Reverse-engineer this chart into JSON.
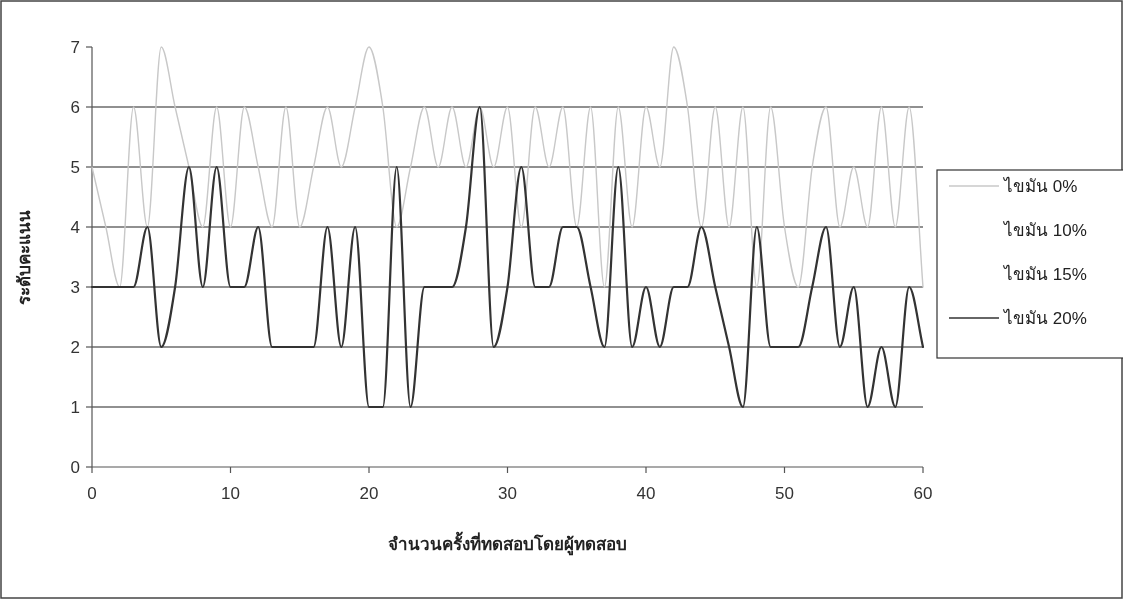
{
  "chart_data": {
    "type": "line",
    "xlabel": "จำนวนครั้งที่ทดสอบโดยผู้ทดสอบ",
    "ylabel": "ระดับคะแนน",
    "x": [
      0,
      1,
      2,
      3,
      4,
      5,
      6,
      7,
      8,
      9,
      10,
      11,
      12,
      13,
      14,
      15,
      16,
      17,
      18,
      19,
      20,
      21,
      22,
      23,
      24,
      25,
      26,
      27,
      28,
      29,
      30,
      31,
      32,
      33,
      34,
      35,
      36,
      37,
      38,
      39,
      40,
      41,
      42,
      43,
      44,
      45,
      46,
      47,
      48,
      49,
      50,
      51,
      52,
      53,
      54,
      55,
      56,
      57,
      58,
      59,
      60
    ],
    "series": [
      {
        "name": "ไขมัน 0%",
        "color": "#c8c8c8",
        "values": [
          5,
          4,
          3,
          6,
          4,
          7,
          6,
          5,
          4,
          6,
          4,
          6,
          5,
          4,
          6,
          4,
          5,
          6,
          5,
          6,
          7,
          6,
          4,
          5,
          6,
          5,
          6,
          5,
          6,
          5,
          6,
          4,
          6,
          5,
          6,
          4,
          6,
          3,
          6,
          4,
          6,
          5,
          7,
          6,
          4,
          6,
          4,
          6,
          3,
          6,
          4,
          3,
          5,
          6,
          4,
          5,
          4,
          6,
          4,
          6,
          3
        ]
      },
      {
        "name": "ไขมัน 10%",
        "values": [
          null,
          null,
          null,
          null,
          null,
          null,
          null,
          null,
          null,
          null,
          null,
          null,
          null,
          null,
          null,
          null,
          null,
          null,
          null,
          null,
          null,
          null,
          null,
          null,
          null,
          null,
          null,
          null,
          null,
          null,
          null,
          null,
          null,
          null,
          null,
          null,
          null,
          null,
          null,
          null,
          null,
          null,
          null,
          null,
          null,
          null,
          null,
          null,
          null,
          null,
          null,
          null,
          null,
          null,
          null,
          null,
          null,
          null,
          null,
          null,
          null
        ]
      },
      {
        "name": "ไขมัน 15%",
        "values": [
          null,
          null,
          null,
          null,
          null,
          null,
          null,
          null,
          null,
          null,
          null,
          null,
          null,
          null,
          null,
          null,
          null,
          null,
          null,
          null,
          null,
          null,
          null,
          null,
          null,
          null,
          null,
          null,
          null,
          null,
          null,
          null,
          null,
          null,
          null,
          null,
          null,
          null,
          null,
          null,
          null,
          null,
          null,
          null,
          null,
          null,
          null,
          null,
          null,
          null,
          null,
          null,
          null,
          null,
          null,
          null,
          null,
          null,
          null,
          null,
          null
        ]
      },
      {
        "name": "ไขมัน 20%",
        "color": "#333333",
        "values": [
          3,
          3,
          3,
          3,
          4,
          2,
          3,
          5,
          3,
          5,
          3,
          3,
          4,
          2,
          2,
          2,
          2,
          4,
          2,
          4,
          1,
          1,
          5,
          1,
          3,
          3,
          3,
          4,
          6,
          2,
          3,
          5,
          3,
          3,
          4,
          4,
          3,
          2,
          5,
          2,
          3,
          2,
          3,
          3,
          4,
          3,
          2,
          1,
          4,
          2,
          2,
          2,
          3,
          4,
          2,
          3,
          1,
          2,
          1,
          3,
          2
        ]
      }
    ],
    "xlim": [
      0,
      60
    ],
    "xticks": [
      0,
      10,
      20,
      30,
      40,
      50,
      60
    ],
    "ylim": [
      0,
      7
    ],
    "yticks": [
      0,
      1,
      2,
      3,
      4,
      5,
      6,
      7
    ],
    "grid": "y",
    "legend": "right",
    "marker": "none",
    "line_style": "solid"
  }
}
